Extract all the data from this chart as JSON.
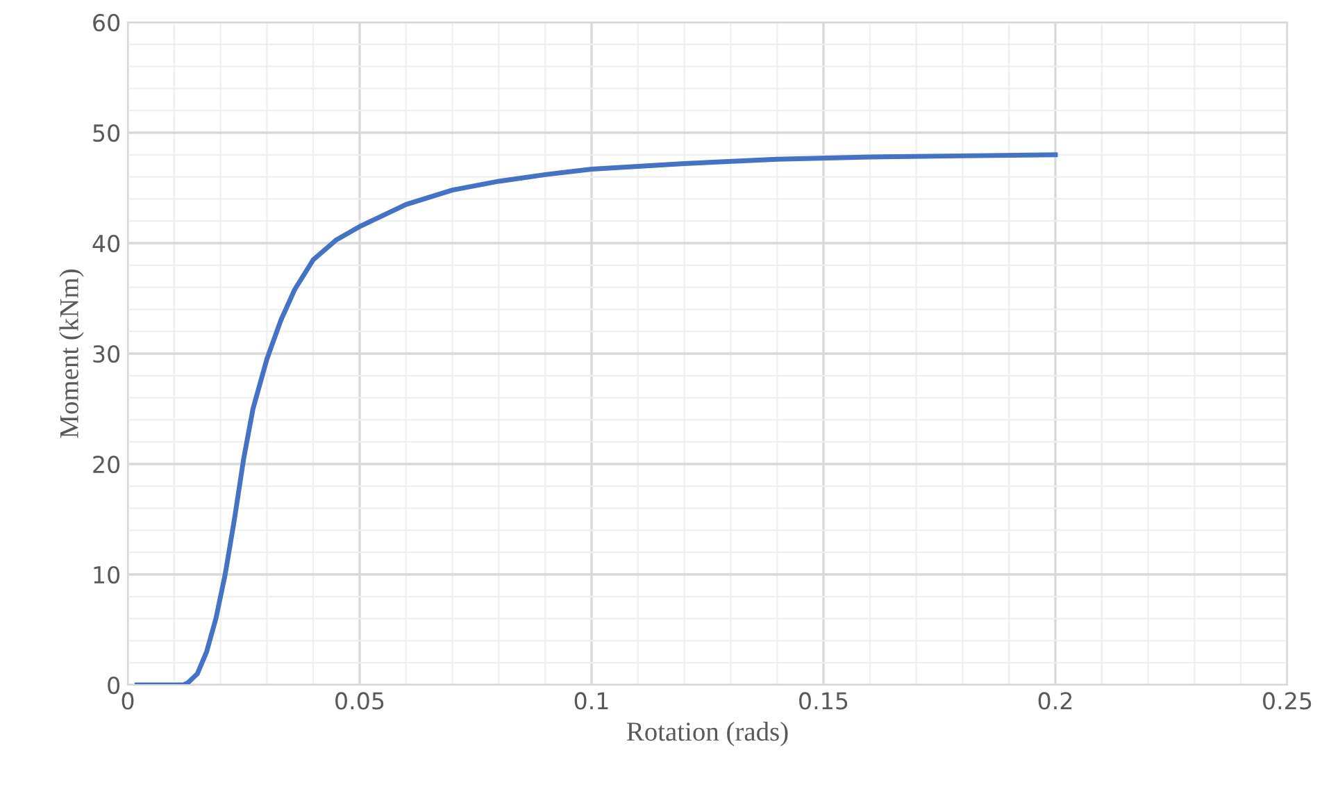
{
  "chart_data": {
    "type": "line",
    "xlabel": "Rotation (rads)",
    "ylabel": "Moment (kNm)",
    "series": [
      {
        "color": "#4472c4",
        "x": [
          0.002,
          0.012,
          0.013,
          0.015,
          0.017,
          0.019,
          0.021,
          0.023,
          0.025,
          0.027,
          0.03,
          0.033,
          0.036,
          0.04,
          0.045,
          0.05,
          0.06,
          0.07,
          0.08,
          0.09,
          0.1,
          0.12,
          0.14,
          0.16,
          0.18,
          0.2
        ],
        "values": [
          0,
          0,
          0.2,
          1,
          3,
          6,
          10,
          15,
          20.5,
          25,
          29.5,
          33,
          35.8,
          38.5,
          40.3,
          41.5,
          43.5,
          44.8,
          45.6,
          46.2,
          46.7,
          47.2,
          47.6,
          47.8,
          47.9,
          48
        ]
      }
    ],
    "xlim": [
      0,
      0.25
    ],
    "ylim": [
      0,
      60
    ],
    "xticks": [
      0,
      {
        "value": 0.01,
        "label": null
      },
      {
        "value": 0.02,
        "label": null
      },
      {
        "value": 0.03,
        "label": null
      },
      {
        "value": 0.04,
        "label": null
      },
      0.05,
      {
        "value": 0.06,
        "label": null
      },
      {
        "value": 0.07,
        "label": null
      },
      {
        "value": 0.08,
        "label": null
      },
      {
        "value": 0.09,
        "label": null
      },
      0.1,
      {
        "value": 0.11,
        "label": null
      },
      {
        "value": 0.12,
        "label": null
      },
      {
        "value": 0.13,
        "label": null
      },
      {
        "value": 0.14,
        "label": null
      },
      0.15,
      {
        "value": 0.16,
        "label": null
      },
      {
        "value": 0.17,
        "label": null
      },
      {
        "value": 0.18,
        "label": null
      },
      {
        "value": 0.19,
        "label": null
      },
      0.2,
      {
        "value": 0.21,
        "label": null
      },
      {
        "value": 0.22,
        "label": null
      },
      {
        "value": 0.23,
        "label": null
      },
      {
        "value": 0.24,
        "label": null
      },
      0.25
    ],
    "yticks": [
      0,
      {
        "value": 2,
        "label": null
      },
      {
        "value": 4,
        "label": null
      },
      {
        "value": 6,
        "label": null
      },
      {
        "value": 8,
        "label": null
      },
      10,
      {
        "value": 12,
        "label": null
      },
      {
        "value": 14,
        "label": null
      },
      {
        "value": 16,
        "label": null
      },
      {
        "value": 18,
        "label": null
      },
      20,
      {
        "value": 22,
        "label": null
      },
      {
        "value": 24,
        "label": null
      },
      {
        "value": 26,
        "label": null
      },
      {
        "value": 28,
        "label": null
      },
      30,
      {
        "value": 32,
        "label": null
      },
      {
        "value": 34,
        "label": null
      },
      {
        "value": 36,
        "label": null
      },
      {
        "value": 38,
        "label": null
      },
      40,
      {
        "value": 42,
        "label": null
      },
      {
        "value": 44,
        "label": null
      },
      {
        "value": 46,
        "label": null
      },
      {
        "value": 48,
        "label": null
      },
      50,
      {
        "value": 52,
        "label": null
      },
      {
        "value": 54,
        "label": null
      },
      {
        "value": 56,
        "label": null
      },
      {
        "value": 58,
        "label": null
      },
      60
    ],
    "grid": true,
    "legend": false,
    "marker": "none",
    "line_style": "solid"
  }
}
